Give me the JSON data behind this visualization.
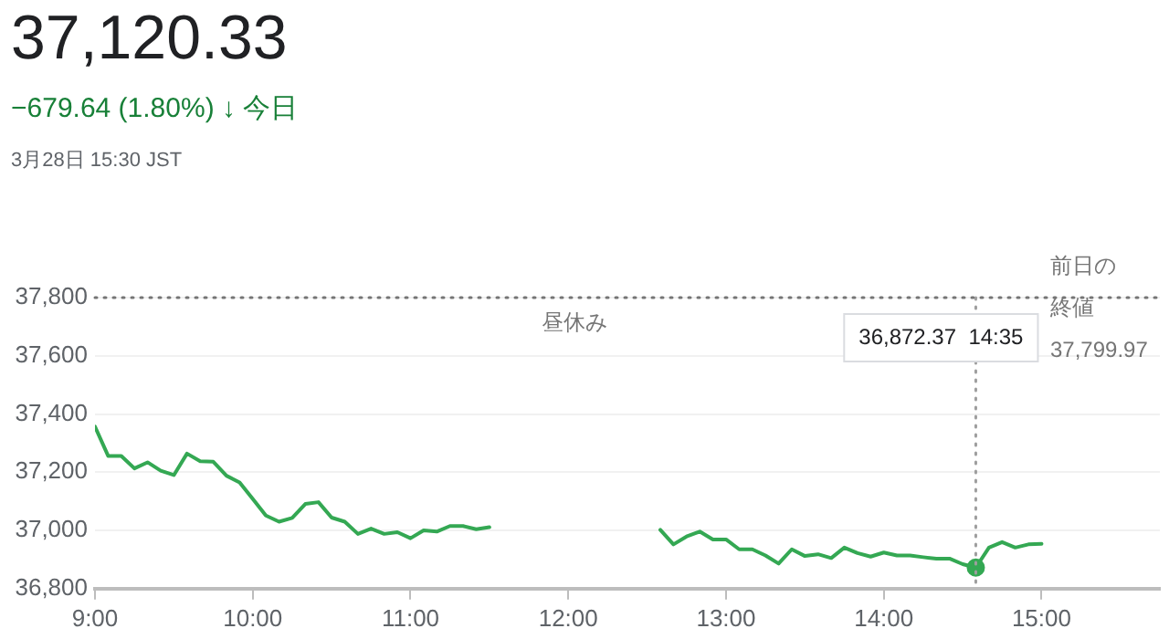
{
  "chart_data": {
    "type": "line",
    "title": "37,120.33",
    "subtitle": "−679.64 (1.80%) ↓ 今日",
    "annotations": [
      "3月28日 15:30 JST",
      "昼休み",
      {
        "text": "36,872.37  14:35",
        "x": 14.5833
      }
    ],
    "series": [
      {
        "color": "#34a853",
        "x": [
          9,
          9.0833,
          9.1667,
          9.25,
          9.3333,
          9.4167,
          9.5,
          9.5833,
          9.6667,
          9.75,
          9.8333,
          9.9167,
          10,
          10.0833,
          10.1667,
          10.25,
          10.3333,
          10.4167,
          10.5,
          10.5833,
          10.6667,
          10.75,
          10.8333,
          10.9167,
          11,
          11.0833,
          11.1667,
          11.25,
          11.3333,
          11.4167,
          11.5
        ],
        "values": [
          37357,
          37256,
          37256,
          37213,
          37234,
          37205,
          37190,
          37264,
          37238,
          37236,
          37188,
          37165,
          37108,
          37051,
          37030,
          37043,
          37091,
          37097,
          37044,
          37030,
          36988,
          37006,
          36988,
          36994,
          36973,
          37000,
          36996,
          37015,
          37015,
          37004,
          37011
        ]
      },
      {
        "color": "#34a853",
        "x": [
          12.5833,
          12.6667,
          12.75,
          12.8333,
          12.9167,
          13,
          13.0833,
          13.1667,
          13.25,
          13.3333,
          13.4167,
          13.5,
          13.5833,
          13.6667,
          13.75,
          13.8333,
          13.9167,
          14,
          14.0833,
          14.1667,
          14.25,
          14.3333,
          14.4167,
          14.5,
          14.5833,
          14.6667,
          14.75,
          14.8333,
          14.9167,
          15
        ],
        "values": [
          37002,
          36952,
          36979,
          36996,
          36969,
          36969,
          36935,
          36935,
          36914,
          36886,
          36935,
          36912,
          36918,
          36905,
          36941,
          36922,
          36910,
          36924,
          36914,
          36914,
          36908,
          36903,
          36903,
          36884,
          36872.37,
          36941,
          36960,
          36941,
          36952,
          36954
        ]
      }
    ],
    "xlim": [
      9,
      15.75
    ],
    "xticks": [
      {
        "value": 9,
        "label": "9:00"
      },
      {
        "value": 10,
        "label": "10:00"
      },
      {
        "value": 11,
        "label": "11:00"
      },
      {
        "value": 12,
        "label": "12:00"
      },
      {
        "value": 13,
        "label": "13:00"
      },
      {
        "value": 14,
        "label": "14:00"
      },
      {
        "value": 15,
        "label": "15:00"
      }
    ],
    "ylim": [
      36800,
      37800
    ],
    "yticks": [
      {
        "value": 36800,
        "label": "36,800"
      },
      {
        "value": 37000,
        "label": "37,000"
      },
      {
        "value": 37200,
        "label": "37,200"
      },
      {
        "value": 37400,
        "label": "37,400"
      },
      {
        "value": 37600,
        "label": "37,600"
      },
      {
        "value": 37800,
        "label": "37,800"
      }
    ],
    "ref_lines": [
      {
        "axis": "y",
        "value": 37799.97,
        "label": "前日の終値\n37,799.97",
        "color": "#757575",
        "line_style": "dotted"
      },
      {
        "axis": "x",
        "value": 14.5833,
        "color": "#9e9e9e",
        "line_style": "dotted"
      }
    ],
    "grid": "y",
    "legend": false,
    "marker": "none",
    "line_style": "solid"
  }
}
